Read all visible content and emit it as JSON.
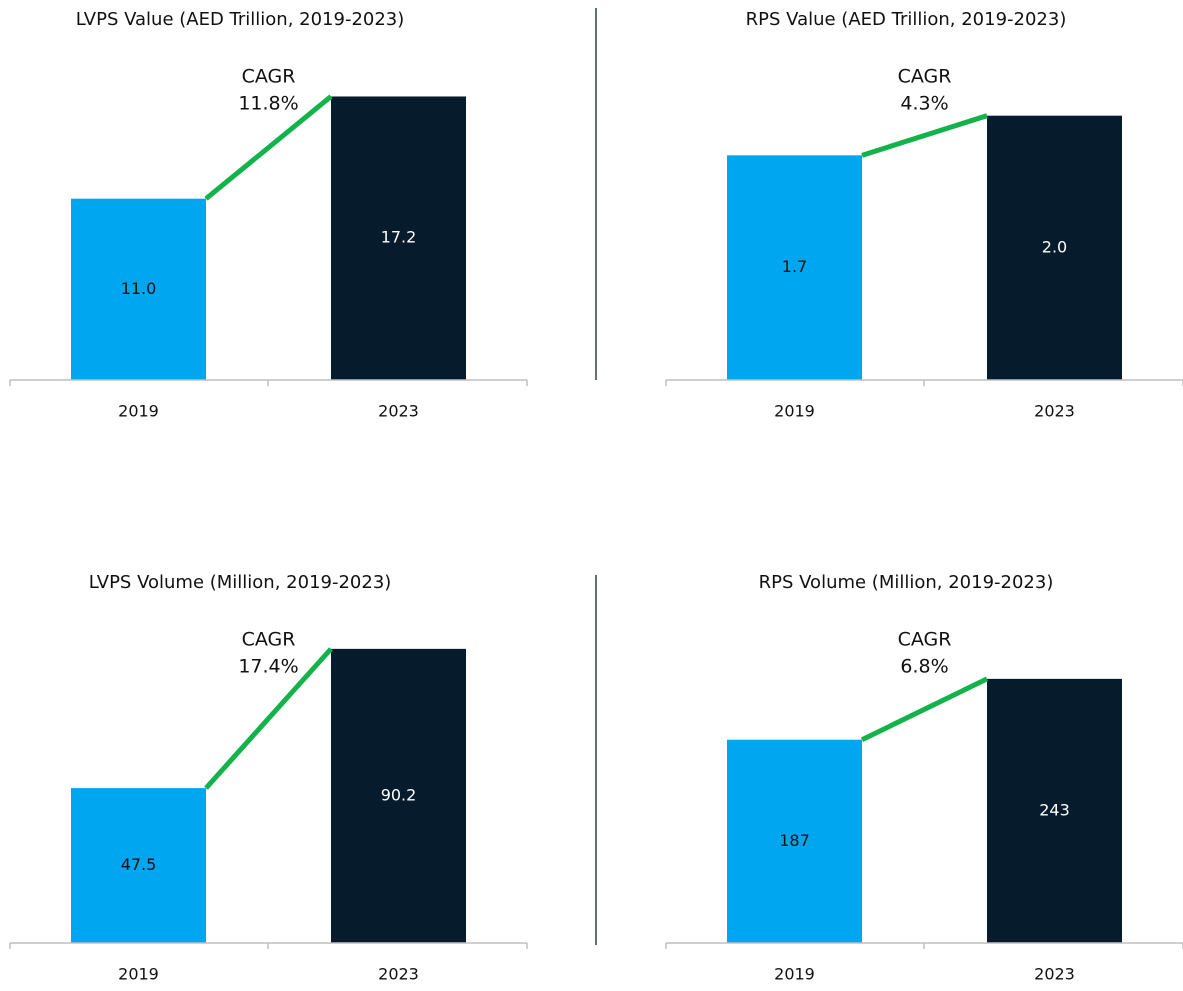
{
  "chart_data": [
    {
      "type": "bar",
      "title": "LVPS Value (AED Trillion, 2019-2023)",
      "categories": [
        "2019",
        "2023"
      ],
      "values": [
        11.0,
        17.2
      ],
      "value_labels": [
        "11.0",
        "17.2"
      ],
      "colors": [
        "#00a6f0",
        "#061c2c"
      ],
      "ylim": [
        0,
        18.2
      ],
      "cagr_label": "CAGR",
      "cagr": "11.8%",
      "line_color": "#13b24b"
    },
    {
      "type": "bar",
      "title": "RPS Value (AED Trillion, 2019-2023)",
      "categories": [
        "2019",
        "2023"
      ],
      "values": [
        1.7,
        2.0
      ],
      "value_labels": [
        "1.7",
        "2.0"
      ],
      "colors": [
        "#00a6f0",
        "#061c2c"
      ],
      "ylim": [
        0,
        2.27
      ],
      "cagr_label": "CAGR",
      "cagr": "4.3%",
      "line_color": "#13b24b"
    },
    {
      "type": "bar",
      "title": "LVPS Volume (Million, 2019-2023)",
      "categories": [
        "2019",
        "2023"
      ],
      "values": [
        47.5,
        90.2
      ],
      "colors": [
        "#00a6f0",
        "#061c2c"
      ],
      "ylim": [
        0,
        92
      ],
      "cagr_label": "CAGR",
      "cagr": "17.4%",
      "line_color": "#13b24b"
    },
    {
      "type": "bar",
      "title": "RPS Volume (Million, 2019-2023)",
      "categories": [
        "2019",
        "2023"
      ],
      "values": [
        187,
        243
      ],
      "colors": [
        "#00a6f0",
        "#061c2c"
      ],
      "ylim": [
        0,
        276
      ],
      "cagr_label": "CAGR",
      "cagr": "6.8%",
      "line_color": "#13b24b"
    }
  ]
}
